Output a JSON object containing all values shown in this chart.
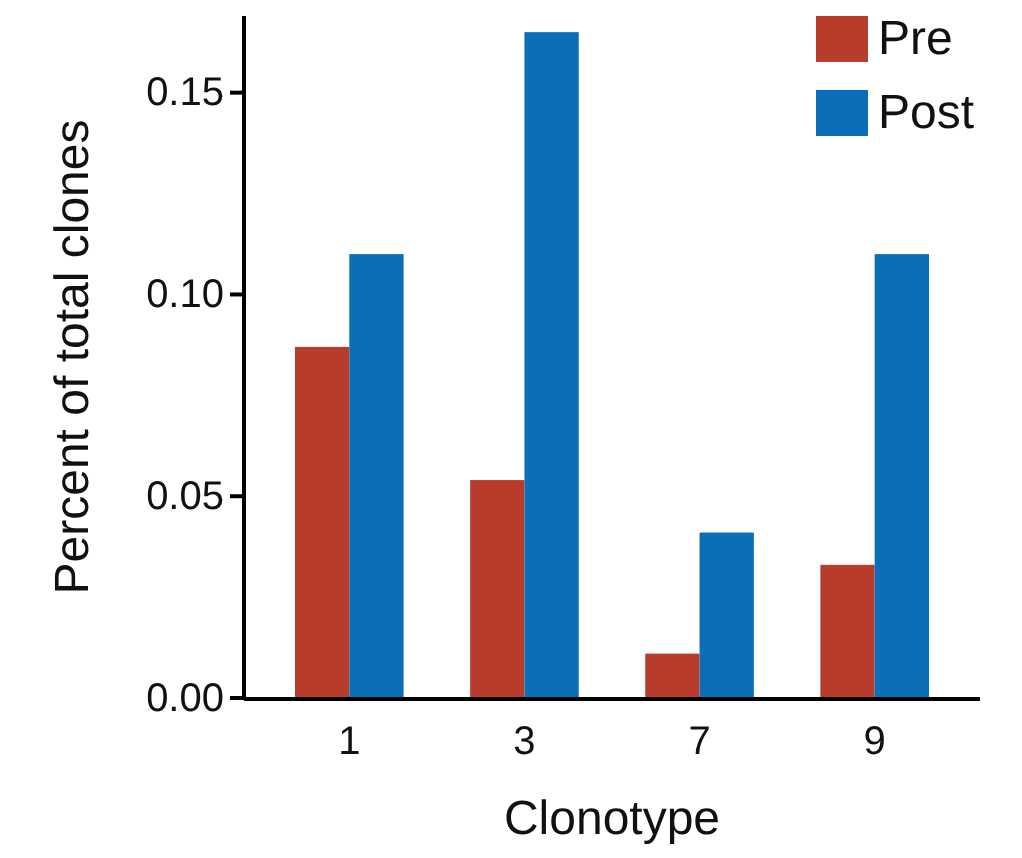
{
  "chart_data": {
    "type": "bar",
    "xlabel": "Clonotype",
    "ylabel": "Percent of total clones",
    "categories": [
      "1",
      "3",
      "7",
      "9"
    ],
    "series": [
      {
        "name": "Pre",
        "color": "#b83c2b",
        "values": [
          0.087,
          0.054,
          0.011,
          0.033
        ]
      },
      {
        "name": "Post",
        "color": "#0a6eb8",
        "values": [
          0.11,
          0.165,
          0.041,
          0.11
        ]
      }
    ],
    "ylim": [
      0,
      0.169
    ],
    "yticks": [
      {
        "value": 0,
        "label": "0.00"
      },
      {
        "value": 0.05,
        "label": "0.05"
      },
      {
        "value": 0.1,
        "label": "0.10"
      },
      {
        "value": 0.15,
        "label": "0.15"
      }
    ],
    "grid": false,
    "legend": "top right"
  }
}
